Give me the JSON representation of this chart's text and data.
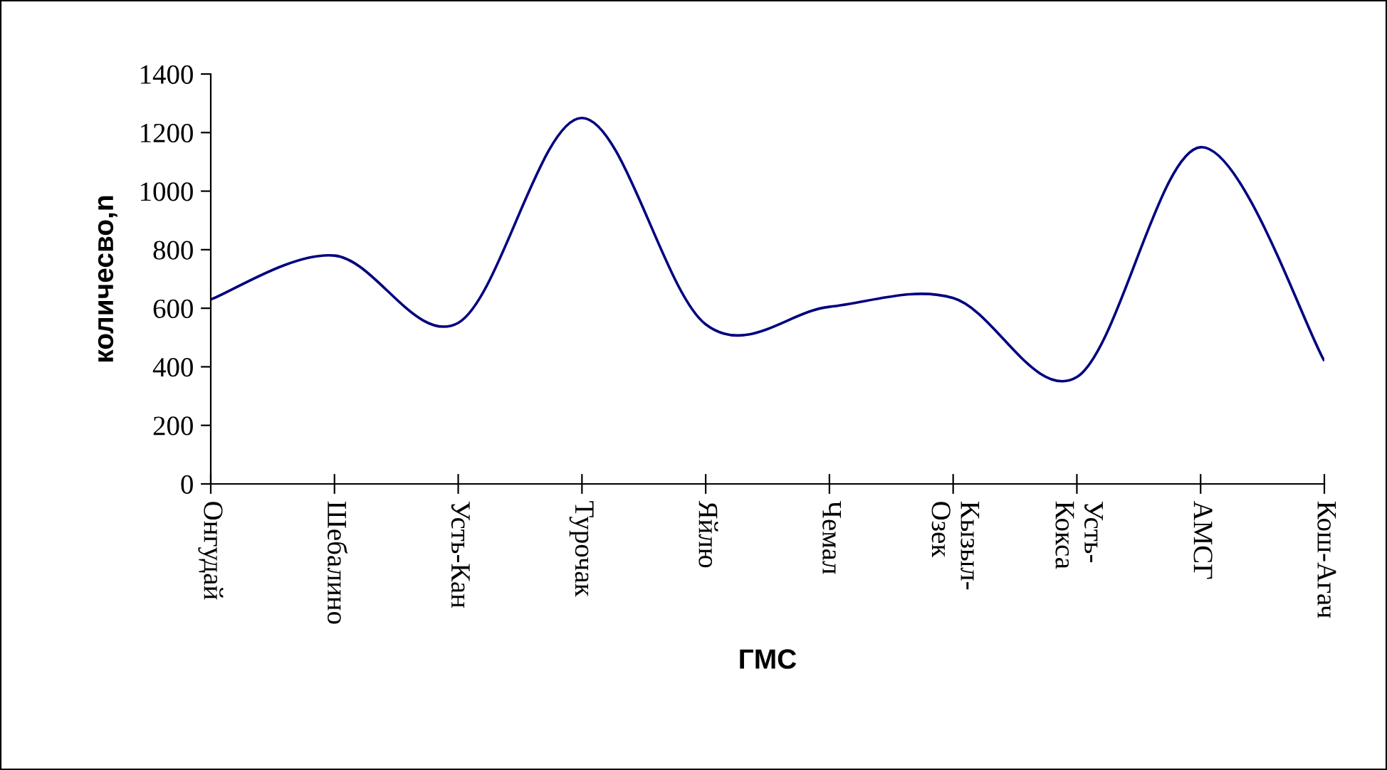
{
  "chart_data": {
    "type": "line",
    "xlabel": "ГМС",
    "ylabel": "количесво,n",
    "categories": [
      "Онгудай",
      "Шебалино",
      "Усть-Кан",
      "Турочак",
      "Яйлю",
      "Чемал",
      "Кызыл-\nОзек",
      "Усть-\nКокса",
      "АМСГ",
      "Кош-Агач"
    ],
    "series": [
      {
        "color": "#000080",
        "values": [
          630,
          780,
          550,
          1250,
          545,
          605,
          635,
          365,
          1150,
          420
        ]
      }
    ],
    "ylim": [
      0,
      1400
    ],
    "yticks": [
      0,
      200,
      400,
      600,
      800,
      1000,
      1200,
      1400
    ],
    "grid": false,
    "legend": false,
    "marker": "none",
    "line_style": "solid"
  }
}
